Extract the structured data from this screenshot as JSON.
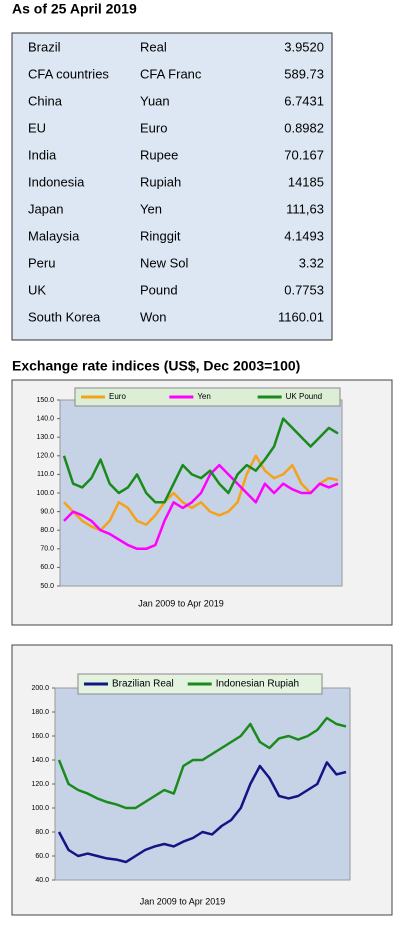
{
  "title": "As of 25 April 2019",
  "table": {
    "rows": [
      [
        "Brazil",
        "Real",
        "3.9520"
      ],
      [
        "CFA countries",
        "CFA Franc",
        "589.73"
      ],
      [
        "China",
        "Yuan",
        "6.7431"
      ],
      [
        "EU",
        "Euro",
        "0.8982"
      ],
      [
        "India",
        "Rupee",
        "70.167"
      ],
      [
        "Indonesia",
        "Rupiah",
        "14185"
      ],
      [
        "Japan",
        "Yen",
        "111,63"
      ],
      [
        "Malaysia",
        "Ringgit",
        "4.1493"
      ],
      [
        "Peru",
        "New Sol",
        "3.32"
      ],
      [
        "UK",
        "Pound",
        "0.7753"
      ],
      [
        "South Korea",
        "Won",
        "1160.01"
      ]
    ]
  },
  "chart_data": [
    {
      "type": "line",
      "title": "Exchange rate indices (US$, Dec 2003=100)",
      "x_label": "Jan 2009  to Apr 2019",
      "ylim": [
        50,
        150
      ],
      "yticks": [
        {
          "value": 50,
          "label": "50.0"
        },
        {
          "value": 60,
          "label": "60.0"
        },
        {
          "value": 70,
          "label": "70.0"
        },
        {
          "value": 80,
          "label": "80.0"
        },
        {
          "value": 90,
          "label": "90.0"
        },
        {
          "value": 100,
          "label": "100.0"
        },
        {
          "value": 110,
          "label": "110.0"
        },
        {
          "value": 120,
          "label": "120.0"
        },
        {
          "value": 130,
          "label": "130.0"
        },
        {
          "value": 140,
          "label": "140.0"
        },
        {
          "value": 150,
          "label": "150.0"
        }
      ],
      "series": [
        {
          "name": "Euro",
          "color": "#f4a11c",
          "values": [
            95,
            90,
            85,
            82,
            80,
            85,
            95,
            92,
            85,
            83,
            88,
            95,
            100,
            95,
            92,
            95,
            90,
            88,
            90,
            95,
            110,
            120,
            112,
            108,
            110,
            115,
            105,
            100,
            105,
            108,
            107
          ]
        },
        {
          "name": "Yen",
          "color": "#ff00ff",
          "values": [
            85,
            90,
            88,
            85,
            80,
            78,
            75,
            72,
            70,
            70,
            72,
            85,
            95,
            92,
            95,
            100,
            110,
            115,
            110,
            105,
            100,
            95,
            105,
            100,
            105,
            102,
            100,
            100,
            105,
            103,
            105
          ]
        },
        {
          "name": "UK Pound",
          "color": "#1a8a1a",
          "values": [
            120,
            105,
            103,
            108,
            118,
            105,
            100,
            103,
            110,
            100,
            95,
            95,
            105,
            115,
            110,
            108,
            112,
            105,
            100,
            110,
            115,
            112,
            118,
            125,
            140,
            135,
            130,
            125,
            130,
            135,
            132
          ]
        }
      ]
    },
    {
      "type": "line",
      "x_label": "Jan 2009  to Apr 2019",
      "ylim": [
        40,
        200
      ],
      "yticks": [
        {
          "value": 40,
          "label": "40.0"
        },
        {
          "value": 60,
          "label": "60.0"
        },
        {
          "value": 80,
          "label": "80.0"
        },
        {
          "value": 100,
          "label": "100.0"
        },
        {
          "value": 120,
          "label": "120.0"
        },
        {
          "value": 140,
          "label": "140.0"
        },
        {
          "value": 160,
          "label": "160.0"
        },
        {
          "value": 180,
          "label": "180.0"
        },
        {
          "value": 200,
          "label": "200.0"
        }
      ],
      "series": [
        {
          "name": "Brazilian Real",
          "color": "#141484",
          "values": [
            80,
            65,
            60,
            62,
            60,
            58,
            57,
            55,
            60,
            65,
            68,
            70,
            68,
            72,
            75,
            80,
            78,
            85,
            90,
            100,
            120,
            135,
            125,
            110,
            108,
            110,
            115,
            120,
            138,
            128,
            130
          ]
        },
        {
          "name": "Indonesian Rupiah",
          "color": "#1a8a1a",
          "values": [
            140,
            120,
            115,
            112,
            108,
            105,
            103,
            100,
            100,
            105,
            110,
            115,
            112,
            135,
            140,
            140,
            145,
            150,
            155,
            160,
            170,
            155,
            150,
            158,
            160,
            157,
            160,
            165,
            175,
            170,
            168
          ]
        }
      ]
    }
  ]
}
